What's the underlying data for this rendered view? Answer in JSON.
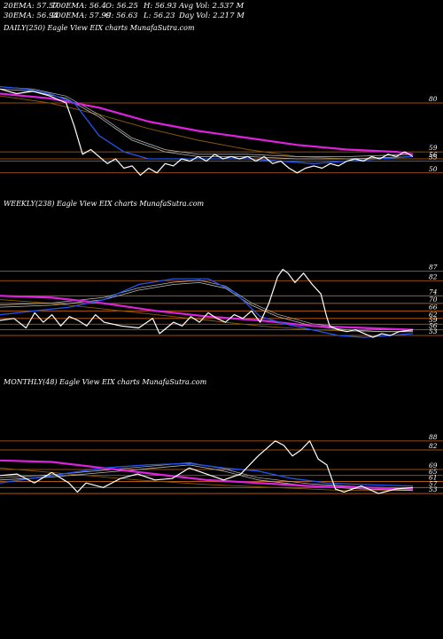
{
  "header": {
    "stats": [
      {
        "id": "ema20",
        "text": "20EMA: 57.57"
      },
      {
        "id": "ema100",
        "text": "100EMA: 56.4"
      },
      {
        "id": "open",
        "text": "O: 56.25"
      },
      {
        "id": "high",
        "text": "H: 56.93"
      },
      {
        "id": "avgvol",
        "text": "Avg Vol: 2.537 M"
      },
      {
        "id": "ema30",
        "text": "30EMA: 56.94"
      },
      {
        "id": "ema200",
        "text": "200EMA: 57.99"
      },
      {
        "id": "close",
        "text": "C: 56.63"
      },
      {
        "id": "low",
        "text": "L: 56.23"
      },
      {
        "id": "dayvol",
        "text": "Day Vol: 2.217 M"
      }
    ]
  },
  "colors": {
    "background": "#000000",
    "price": "#ffffff",
    "ema_blue": "#2255ee",
    "ema_magenta": "#dd22dd",
    "ema_brown": "#8b5a00",
    "ema_gray": "#bbbbbb",
    "level_lines": "#c86414"
  },
  "chart_data": [
    {
      "type": "line",
      "title": "DAILY(250) Eagle  View  EIX  charts MunafaSutra.com",
      "yticks": [
        80,
        59,
        56,
        55,
        50
      ],
      "ylim": [
        48,
        88
      ],
      "n": 250,
      "series": [
        {
          "role": "price",
          "points": [
            [
              0,
              86
            ],
            [
              10,
              84
            ],
            [
              20,
              85
            ],
            [
              30,
              83
            ],
            [
              40,
              80
            ],
            [
              45,
              70
            ],
            [
              50,
              58
            ],
            [
              55,
              60
            ],
            [
              60,
              57
            ],
            [
              65,
              54
            ],
            [
              70,
              56
            ],
            [
              75,
              52
            ],
            [
              80,
              53
            ],
            [
              85,
              49
            ],
            [
              90,
              52
            ],
            [
              95,
              50
            ],
            [
              100,
              54
            ],
            [
              105,
              53
            ],
            [
              110,
              56
            ],
            [
              115,
              55
            ],
            [
              120,
              57
            ],
            [
              125,
              55
            ],
            [
              130,
              58
            ],
            [
              135,
              56
            ],
            [
              140,
              57
            ],
            [
              145,
              56
            ],
            [
              150,
              57
            ],
            [
              155,
              55
            ],
            [
              160,
              57
            ],
            [
              165,
              54
            ],
            [
              170,
              55
            ],
            [
              175,
              52
            ],
            [
              180,
              50
            ],
            [
              185,
              52
            ],
            [
              190,
              53
            ],
            [
              195,
              52
            ],
            [
              200,
              54
            ],
            [
              205,
              53
            ],
            [
              210,
              55
            ],
            [
              215,
              56
            ],
            [
              220,
              55
            ],
            [
              225,
              57
            ],
            [
              230,
              56
            ],
            [
              235,
              58
            ],
            [
              240,
              57
            ],
            [
              245,
              59
            ],
            [
              250,
              57
            ]
          ]
        },
        {
          "role": "ema_blue",
          "points": [
            [
              0,
              87
            ],
            [
              15,
              86
            ],
            [
              30,
              84
            ],
            [
              45,
              80
            ],
            [
              60,
              66
            ],
            [
              75,
              59
            ],
            [
              90,
              56
            ],
            [
              110,
              56
            ],
            [
              130,
              56
            ],
            [
              150,
              56
            ],
            [
              170,
              55
            ],
            [
              190,
              54
            ],
            [
              210,
              55
            ],
            [
              230,
              56
            ],
            [
              250,
              57
            ]
          ]
        },
        {
          "role": "ema_gray",
          "points": [
            [
              0,
              86
            ],
            [
              20,
              85
            ],
            [
              40,
              82
            ],
            [
              60,
              74
            ],
            [
              80,
              64
            ],
            [
              100,
              59
            ],
            [
              120,
              57
            ],
            [
              150,
              57
            ],
            [
              180,
              56
            ],
            [
              210,
              56
            ],
            [
              250,
              57
            ]
          ]
        },
        {
          "role": "ema_magenta",
          "points": [
            [
              0,
              84
            ],
            [
              30,
              82
            ],
            [
              60,
              78
            ],
            [
              90,
              72
            ],
            [
              120,
              68
            ],
            [
              150,
              65
            ],
            [
              180,
              62
            ],
            [
              210,
              60
            ],
            [
              240,
              59
            ],
            [
              250,
              58
            ]
          ]
        },
        {
          "role": "ema_brown",
          "points": [
            [
              0,
              83
            ],
            [
              30,
              80
            ],
            [
              60,
              75
            ],
            [
              90,
              69
            ],
            [
              120,
              64
            ],
            [
              150,
              60
            ],
            [
              180,
              57
            ],
            [
              210,
              56
            ],
            [
              250,
              56
            ]
          ]
        }
      ]
    },
    {
      "type": "line",
      "title": "WEEKLY(238) Eagle  View  EIX  charts MunafaSutra.com",
      "yticks": [
        87,
        82,
        74,
        70,
        66,
        62,
        59,
        56,
        53
      ],
      "ylim": [
        45,
        92
      ],
      "n": 238,
      "series": [
        {
          "role": "price",
          "points": [
            [
              0,
              61
            ],
            [
              8,
              62
            ],
            [
              15,
              57
            ],
            [
              20,
              65
            ],
            [
              25,
              60
            ],
            [
              30,
              64
            ],
            [
              35,
              58
            ],
            [
              40,
              63
            ],
            [
              45,
              61
            ],
            [
              50,
              58
            ],
            [
              55,
              64
            ],
            [
              60,
              60
            ],
            [
              70,
              58
            ],
            [
              80,
              57
            ],
            [
              88,
              62
            ],
            [
              92,
              54
            ],
            [
              96,
              57
            ],
            [
              100,
              60
            ],
            [
              105,
              58
            ],
            [
              110,
              63
            ],
            [
              115,
              60
            ],
            [
              120,
              65
            ],
            [
              125,
              62
            ],
            [
              130,
              60
            ],
            [
              135,
              64
            ],
            [
              140,
              62
            ],
            [
              145,
              66
            ],
            [
              150,
              60
            ],
            [
              155,
              70
            ],
            [
              160,
              84
            ],
            [
              163,
              88
            ],
            [
              166,
              86
            ],
            [
              170,
              81
            ],
            [
              175,
              86
            ],
            [
              180,
              80
            ],
            [
              185,
              75
            ],
            [
              188,
              64
            ],
            [
              190,
              58
            ],
            [
              195,
              56
            ],
            [
              200,
              55
            ],
            [
              205,
              56
            ],
            [
              210,
              54
            ],
            [
              215,
              52
            ],
            [
              220,
              54
            ],
            [
              225,
              53
            ],
            [
              230,
              55
            ],
            [
              238,
              56
            ]
          ]
        },
        {
          "role": "ema_blue",
          "points": [
            [
              0,
              64
            ],
            [
              20,
              66
            ],
            [
              40,
              68
            ],
            [
              60,
              72
            ],
            [
              80,
              80
            ],
            [
              100,
              83
            ],
            [
              120,
              83
            ],
            [
              135,
              76
            ],
            [
              150,
              63
            ],
            [
              165,
              59
            ],
            [
              180,
              56
            ],
            [
              195,
              53
            ],
            [
              210,
              52
            ],
            [
              225,
              53
            ],
            [
              238,
              54
            ]
          ]
        },
        {
          "role": "ema_gray",
          "points": [
            [
              0,
              68
            ],
            [
              30,
              69
            ],
            [
              60,
              72
            ],
            [
              80,
              77
            ],
            [
              100,
              80
            ],
            [
              115,
              81
            ],
            [
              130,
              78
            ],
            [
              145,
              69
            ],
            [
              160,
              63
            ],
            [
              180,
              58
            ],
            [
              200,
              56
            ],
            [
              220,
              55
            ],
            [
              238,
              55
            ]
          ]
        },
        {
          "role": "ema_magenta",
          "points": [
            [
              0,
              74
            ],
            [
              30,
              73
            ],
            [
              60,
              70
            ],
            [
              90,
              66
            ],
            [
              120,
              63
            ],
            [
              150,
              61
            ],
            [
              180,
              58
            ],
            [
              210,
              57
            ],
            [
              238,
              56
            ]
          ]
        },
        {
          "role": "ema_brown",
          "points": [
            [
              0,
              72
            ],
            [
              30,
              70
            ],
            [
              60,
              67
            ],
            [
              90,
              64
            ],
            [
              120,
              61
            ],
            [
              150,
              58
            ],
            [
              180,
              56
            ],
            [
              210,
              55
            ],
            [
              238,
              55
            ]
          ]
        }
      ]
    },
    {
      "type": "line",
      "title": "MONTHLY(48) Eagle  View  EIX  charts MunafaSutra.com",
      "yticks": [
        88,
        82,
        69,
        65,
        61,
        57,
        53
      ],
      "ylim": [
        30,
        95
      ],
      "n": 48,
      "series": [
        {
          "role": "price",
          "points": [
            [
              0,
              65
            ],
            [
              2,
              66
            ],
            [
              4,
              60
            ],
            [
              6,
              67
            ],
            [
              8,
              60
            ],
            [
              9,
              54
            ],
            [
              10,
              60
            ],
            [
              12,
              57
            ],
            [
              14,
              63
            ],
            [
              16,
              66
            ],
            [
              18,
              62
            ],
            [
              20,
              63
            ],
            [
              22,
              70
            ],
            [
              24,
              66
            ],
            [
              26,
              62
            ],
            [
              28,
              66
            ],
            [
              30,
              78
            ],
            [
              32,
              88
            ],
            [
              33,
              85
            ],
            [
              34,
              78
            ],
            [
              35,
              82
            ],
            [
              36,
              88
            ],
            [
              37,
              76
            ],
            [
              38,
              72
            ],
            [
              39,
              56
            ],
            [
              40,
              54
            ],
            [
              42,
              58
            ],
            [
              44,
              53
            ],
            [
              46,
              56
            ],
            [
              48,
              57
            ]
          ]
        },
        {
          "role": "ema_blue",
          "points": [
            [
              0,
              60
            ],
            [
              6,
              65
            ],
            [
              12,
              70
            ],
            [
              17,
              72
            ],
            [
              22,
              73
            ],
            [
              26,
              70
            ],
            [
              30,
              68
            ],
            [
              34,
              63
            ],
            [
              38,
              60
            ],
            [
              42,
              59
            ],
            [
              48,
              58
            ]
          ]
        },
        {
          "role": "ema_gray",
          "points": [
            [
              0,
              62
            ],
            [
              6,
              64
            ],
            [
              12,
              67
            ],
            [
              18,
              70
            ],
            [
              22,
              72
            ],
            [
              26,
              68
            ],
            [
              30,
              62
            ],
            [
              36,
              58
            ],
            [
              42,
              56
            ],
            [
              48,
              55
            ]
          ]
        },
        {
          "role": "ema_magenta",
          "points": [
            [
              0,
              75
            ],
            [
              6,
              74
            ],
            [
              12,
              70
            ],
            [
              18,
              66
            ],
            [
              24,
              62
            ],
            [
              30,
              60
            ],
            [
              36,
              58
            ],
            [
              42,
              57
            ],
            [
              48,
              56
            ]
          ]
        },
        {
          "role": "ema_brown",
          "points": [
            [
              0,
              70
            ],
            [
              8,
              66
            ],
            [
              16,
              62
            ],
            [
              24,
              59
            ],
            [
              32,
              57
            ],
            [
              40,
              55
            ],
            [
              48,
              55
            ]
          ]
        }
      ]
    }
  ]
}
